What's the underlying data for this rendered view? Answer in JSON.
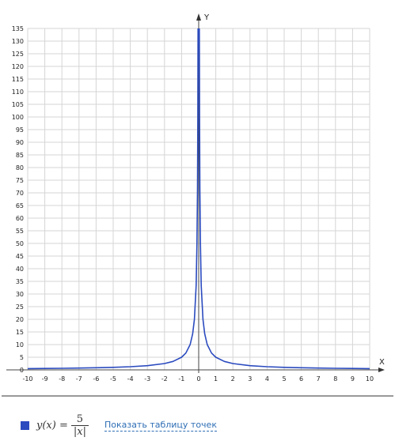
{
  "chart_data": {
    "type": "line",
    "xlabel": "X",
    "ylabel": "Y",
    "xlim": [
      -10,
      10
    ],
    "ylim": [
      0,
      135
    ],
    "x_ticks": [
      -10,
      -9,
      -8,
      -7,
      -6,
      -5,
      -4,
      -3,
      -2,
      -1,
      0,
      1,
      2,
      3,
      4,
      5,
      6,
      7,
      8,
      9,
      10
    ],
    "y_ticks": [
      0,
      5,
      10,
      15,
      20,
      25,
      30,
      35,
      40,
      45,
      50,
      55,
      60,
      65,
      70,
      75,
      80,
      85,
      90,
      95,
      100,
      105,
      110,
      115,
      120,
      125,
      130,
      135
    ],
    "grid": true,
    "series": [
      {
        "function": "y = 5/|x|",
        "color": "#2b4bbf",
        "x": [
          -10,
          -9,
          -8,
          -7,
          -6,
          -5,
          -4,
          -3,
          -2,
          -1.5,
          -1,
          -0.75,
          -0.5,
          -0.35,
          -0.25,
          -0.15,
          -0.1,
          -0.07,
          -0.05,
          -0.04,
          -0.037,
          0.037,
          0.04,
          0.05,
          0.07,
          0.1,
          0.15,
          0.25,
          0.35,
          0.5,
          0.75,
          1,
          1.5,
          2,
          3,
          4,
          5,
          6,
          7,
          8,
          9,
          10
        ],
        "y": [
          0.5,
          0.56,
          0.63,
          0.71,
          0.83,
          1,
          1.25,
          1.67,
          2.5,
          3.33,
          5,
          6.67,
          10,
          14.29,
          20,
          33.33,
          50,
          71.43,
          100,
          125,
          135,
          135,
          125,
          100,
          71.43,
          50,
          33.33,
          20,
          14.29,
          10,
          6.67,
          5,
          3.33,
          2.5,
          1.67,
          1.25,
          1,
          0.83,
          0.71,
          0.63,
          0.56,
          0.5
        ]
      }
    ]
  },
  "legend": {
    "lhs": "y(x) =",
    "numerator": "5",
    "denominator": "|x|",
    "color": "#2b4bbf",
    "table_link": "Показать таблицу точек"
  }
}
